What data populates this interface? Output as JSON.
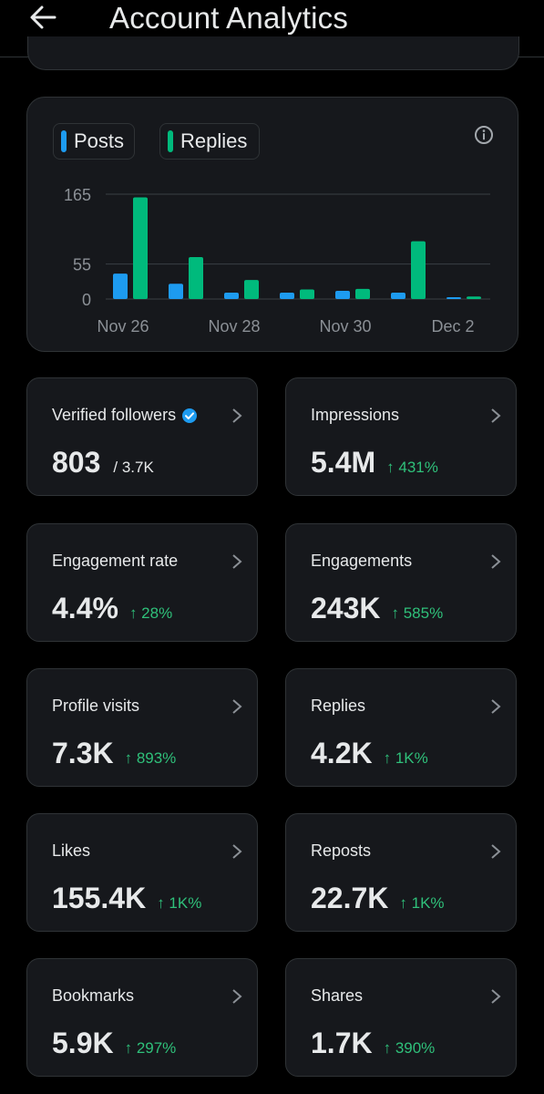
{
  "header": {
    "title": "Account Analytics"
  },
  "legend": {
    "posts": "Posts",
    "replies": "Replies"
  },
  "colors": {
    "posts": "#1d9bf0",
    "replies": "#00ba7c",
    "delta": "#2fc07a"
  },
  "chart_data": {
    "type": "bar",
    "categories": [
      "Nov 26",
      "Nov 27",
      "Nov 28",
      "Nov 29",
      "Nov 30",
      "Dec 1",
      "Dec 2"
    ],
    "tick_labels": [
      "Nov 26",
      "Nov 28",
      "Nov 30",
      "Dec 2"
    ],
    "y_ticks": [
      0,
      55,
      165
    ],
    "ylim": [
      0,
      165
    ],
    "series": [
      {
        "name": "Posts",
        "values": [
          40,
          24,
          10,
          10,
          13,
          10,
          2
        ]
      },
      {
        "name": "Replies",
        "values": [
          160,
          66,
          30,
          15,
          16,
          91,
          4
        ]
      }
    ]
  },
  "metrics": {
    "verified_followers": {
      "label": "Verified followers",
      "value": "803",
      "sub": "/ 3.7K"
    },
    "impressions": {
      "label": "Impressions",
      "value": "5.4M",
      "delta": "↑ 431%"
    },
    "engagement_rate": {
      "label": "Engagement rate",
      "value": "4.4%",
      "delta": "↑ 28%"
    },
    "engagements": {
      "label": "Engagements",
      "value": "243K",
      "delta": "↑ 585%"
    },
    "profile_visits": {
      "label": "Profile visits",
      "value": "7.3K",
      "delta": "↑ 893%"
    },
    "replies": {
      "label": "Replies",
      "value": "4.2K",
      "delta": "↑ 1K%"
    },
    "likes": {
      "label": "Likes",
      "value": "155.4K",
      "delta": "↑ 1K%"
    },
    "reposts": {
      "label": "Reposts",
      "value": "22.7K",
      "delta": "↑ 1K%"
    },
    "bookmarks": {
      "label": "Bookmarks",
      "value": "5.9K",
      "delta": "↑ 297%"
    },
    "shares": {
      "label": "Shares",
      "value": "1.7K",
      "delta": "↑ 390%"
    }
  }
}
